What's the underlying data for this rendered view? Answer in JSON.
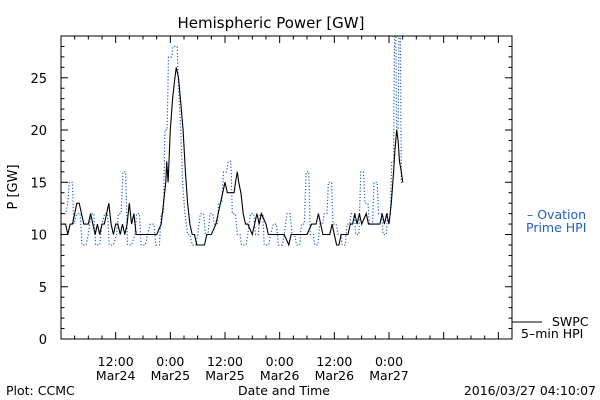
{
  "footer": {
    "left": "Plot: CCMC",
    "center": "Date and Time",
    "right": "2016/03/27 04:10:07"
  },
  "legend": {
    "ovation_line1": "– Ovation",
    "ovation_line2": "Prime HPI",
    "swpc_line1": "SWPC",
    "swpc_line2": "5–min HPI"
  },
  "colors": {
    "swpc": "#000000",
    "ovation": "#1f5fbf",
    "axis": "#000000",
    "background": "#ffffff"
  },
  "chart_data": {
    "type": "line",
    "title": "Hemispheric Power [GW]",
    "ylabel": "P [GW]",
    "xlabel": "Date and Time",
    "xlim_hours": [
      0,
      99
    ],
    "ylim": [
      0,
      29
    ],
    "yticks": [
      0,
      5,
      10,
      15,
      20,
      25
    ],
    "xticks": [
      {
        "t": 12,
        "line1": "12:00",
        "line2": "Mar24"
      },
      {
        "t": 24,
        "line1": "0:00",
        "line2": "Mar25"
      },
      {
        "t": 36,
        "line1": "12:00",
        "line2": "Mar25"
      },
      {
        "t": 48,
        "line1": "0:00",
        "line2": "Mar26"
      },
      {
        "t": 60,
        "line1": "12:00",
        "line2": "Mar26"
      },
      {
        "t": 72,
        "line1": "0:00",
        "line2": "Mar27"
      }
    ],
    "series": [
      {
        "name": "SWPC 5-min HPI",
        "style": "solid",
        "points": [
          [
            0,
            11
          ],
          [
            1,
            11
          ],
          [
            1.5,
            10
          ],
          [
            2,
            11
          ],
          [
            2.5,
            11
          ],
          [
            3,
            12
          ],
          [
            3.5,
            13
          ],
          [
            4,
            13
          ],
          [
            4.5,
            12
          ],
          [
            5,
            11
          ],
          [
            6,
            11
          ],
          [
            6.5,
            12
          ],
          [
            7,
            11
          ],
          [
            7.5,
            10
          ],
          [
            8,
            11
          ],
          [
            8.5,
            10
          ],
          [
            9,
            11
          ],
          [
            9.5,
            11
          ],
          [
            10,
            12
          ],
          [
            10.5,
            13
          ],
          [
            11,
            11
          ],
          [
            11.5,
            10
          ],
          [
            12,
            11
          ],
          [
            12.5,
            11
          ],
          [
            13,
            10
          ],
          [
            13.5,
            11
          ],
          [
            14,
            10
          ],
          [
            14.5,
            11
          ],
          [
            15,
            13
          ],
          [
            15.5,
            11
          ],
          [
            16,
            12
          ],
          [
            16.5,
            10
          ],
          [
            17,
            10
          ],
          [
            18,
            10
          ],
          [
            19,
            10
          ],
          [
            20,
            10
          ],
          [
            21,
            10
          ],
          [
            22,
            11
          ],
          [
            22.5,
            13
          ],
          [
            23,
            15
          ],
          [
            23.2,
            17
          ],
          [
            23.5,
            15
          ],
          [
            24,
            20
          ],
          [
            24.5,
            23
          ],
          [
            25,
            25
          ],
          [
            25.3,
            26
          ],
          [
            25.8,
            25
          ],
          [
            26.2,
            23
          ],
          [
            26.8,
            20
          ],
          [
            27.3,
            16
          ],
          [
            27.8,
            13
          ],
          [
            28.3,
            11
          ],
          [
            28.8,
            10
          ],
          [
            29.3,
            10
          ],
          [
            29.8,
            9
          ],
          [
            30.5,
            9
          ],
          [
            31.5,
            9
          ],
          [
            32,
            10
          ],
          [
            33,
            10
          ],
          [
            34,
            11
          ],
          [
            34.5,
            12
          ],
          [
            35,
            13
          ],
          [
            35.5,
            14
          ],
          [
            36,
            15
          ],
          [
            36.5,
            14
          ],
          [
            37.5,
            14
          ],
          [
            38,
            14
          ],
          [
            38.3,
            15
          ],
          [
            38.7,
            16
          ],
          [
            39,
            15
          ],
          [
            39.5,
            14
          ],
          [
            40,
            12
          ],
          [
            40.5,
            11
          ],
          [
            41,
            11
          ],
          [
            42,
            10
          ],
          [
            42.5,
            11
          ],
          [
            43,
            12
          ],
          [
            43.5,
            11
          ],
          [
            44,
            12
          ],
          [
            45,
            11
          ],
          [
            45.5,
            10
          ],
          [
            46,
            10
          ],
          [
            47,
            10
          ],
          [
            48,
            10
          ],
          [
            49,
            10
          ],
          [
            50,
            9
          ],
          [
            50.5,
            10
          ],
          [
            51,
            10
          ],
          [
            52,
            10
          ],
          [
            53,
            10
          ],
          [
            54,
            10
          ],
          [
            55,
            11
          ],
          [
            56,
            11
          ],
          [
            56.5,
            12
          ],
          [
            57,
            11
          ],
          [
            57.5,
            10
          ],
          [
            58,
            10
          ],
          [
            59,
            10
          ],
          [
            59.5,
            11
          ],
          [
            60,
            10
          ],
          [
            60.5,
            9
          ],
          [
            61,
            9
          ],
          [
            61.5,
            10
          ],
          [
            62,
            10
          ],
          [
            63,
            10
          ],
          [
            63.5,
            11
          ],
          [
            64,
            11
          ],
          [
            64.5,
            12
          ],
          [
            65,
            11
          ],
          [
            65.5,
            12
          ],
          [
            66,
            11
          ],
          [
            67,
            12
          ],
          [
            67.5,
            11
          ],
          [
            68,
            11
          ],
          [
            69,
            11
          ],
          [
            70,
            11
          ],
          [
            70.5,
            12
          ],
          [
            71,
            11
          ],
          [
            71.5,
            12
          ],
          [
            72,
            11
          ],
          [
            72.5,
            13
          ],
          [
            73,
            16
          ],
          [
            73.3,
            18
          ],
          [
            73.7,
            20
          ],
          [
            74,
            19
          ],
          [
            74.3,
            17
          ],
          [
            74.7,
            16
          ],
          [
            75,
            15
          ]
        ]
      },
      {
        "name": "Ovation Prime HPI",
        "style": "dotted",
        "points": [
          [
            0,
            12
          ],
          [
            1,
            12
          ],
          [
            1.5,
            13
          ],
          [
            1.8,
            15
          ],
          [
            2.5,
            15
          ],
          [
            2.8,
            11
          ],
          [
            3.5,
            12
          ],
          [
            4.2,
            12
          ],
          [
            4.6,
            9
          ],
          [
            5.5,
            9
          ],
          [
            6,
            10
          ],
          [
            6.6,
            12
          ],
          [
            7.2,
            12
          ],
          [
            7.6,
            9
          ],
          [
            8.5,
            9
          ],
          [
            9,
            11
          ],
          [
            9.6,
            12
          ],
          [
            10.2,
            12
          ],
          [
            10.6,
            9
          ],
          [
            11.5,
            9
          ],
          [
            12.2,
            10
          ],
          [
            12.6,
            12
          ],
          [
            13.2,
            12
          ],
          [
            13.6,
            16
          ],
          [
            14.2,
            16
          ],
          [
            14.6,
            9
          ],
          [
            15.5,
            9
          ],
          [
            16.2,
            10
          ],
          [
            16.6,
            12
          ],
          [
            17.2,
            12
          ],
          [
            17.6,
            9
          ],
          [
            18.5,
            9
          ],
          [
            19,
            10
          ],
          [
            19.6,
            11
          ],
          [
            20.4,
            11
          ],
          [
            20.8,
            9
          ],
          [
            21.6,
            9
          ],
          [
            22,
            12
          ],
          [
            22.5,
            12
          ],
          [
            22.8,
            20
          ],
          [
            23.3,
            20
          ],
          [
            23.6,
            27
          ],
          [
            24.3,
            27
          ],
          [
            24.6,
            28
          ],
          [
            25.5,
            28
          ],
          [
            25.8,
            24
          ],
          [
            26.3,
            20
          ],
          [
            26.7,
            15
          ],
          [
            27.2,
            12
          ],
          [
            27.8,
            10
          ],
          [
            28.3,
            10
          ],
          [
            28.8,
            9
          ],
          [
            29.6,
            9
          ],
          [
            30,
            10
          ],
          [
            30.6,
            12
          ],
          [
            31.3,
            12
          ],
          [
            31.7,
            10
          ],
          [
            32.3,
            10
          ],
          [
            32.7,
            12
          ],
          [
            33.3,
            12
          ],
          [
            33.7,
            11
          ],
          [
            34.3,
            11
          ],
          [
            34.6,
            13
          ],
          [
            35.3,
            13
          ],
          [
            35.7,
            16
          ],
          [
            36.3,
            16
          ],
          [
            36.7,
            17
          ],
          [
            37.3,
            17
          ],
          [
            37.6,
            12
          ],
          [
            38.3,
            12
          ],
          [
            38.7,
            10
          ],
          [
            39.3,
            10
          ],
          [
            39.6,
            9
          ],
          [
            40.6,
            9
          ],
          [
            41,
            10
          ],
          [
            41.6,
            12
          ],
          [
            42.3,
            12
          ],
          [
            42.7,
            10
          ],
          [
            43.3,
            10
          ],
          [
            43.7,
            12
          ],
          [
            44.3,
            12
          ],
          [
            44.6,
            9
          ],
          [
            45.6,
            9
          ],
          [
            46,
            10
          ],
          [
            46.6,
            11
          ],
          [
            47.3,
            11
          ],
          [
            47.7,
            9
          ],
          [
            48.6,
            9
          ],
          [
            49,
            10
          ],
          [
            49.6,
            12
          ],
          [
            50.3,
            12
          ],
          [
            50.7,
            10
          ],
          [
            51.3,
            10
          ],
          [
            51.7,
            9
          ],
          [
            52.4,
            9
          ],
          [
            52.8,
            11
          ],
          [
            53.4,
            11
          ],
          [
            53.8,
            16
          ],
          [
            54.4,
            16
          ],
          [
            54.7,
            10
          ],
          [
            55.4,
            10
          ],
          [
            55.7,
            9
          ],
          [
            56.4,
            9
          ],
          [
            56.8,
            11
          ],
          [
            57.4,
            11
          ],
          [
            57.8,
            12
          ],
          [
            58.4,
            12
          ],
          [
            58.7,
            15
          ],
          [
            59.4,
            15
          ],
          [
            59.7,
            11
          ],
          [
            60.4,
            11
          ],
          [
            60.8,
            10
          ],
          [
            61.4,
            10
          ],
          [
            61.7,
            9
          ],
          [
            62.4,
            9
          ],
          [
            62.8,
            11
          ],
          [
            63.4,
            11
          ],
          [
            63.7,
            12
          ],
          [
            64.4,
            12
          ],
          [
            64.7,
            10
          ],
          [
            65.4,
            10
          ],
          [
            65.8,
            16
          ],
          [
            66.4,
            16
          ],
          [
            66.7,
            13
          ],
          [
            67.4,
            13
          ],
          [
            67.7,
            11
          ],
          [
            68.4,
            11
          ],
          [
            68.7,
            15
          ],
          [
            69.4,
            15
          ],
          [
            69.7,
            12
          ],
          [
            70.4,
            12
          ],
          [
            70.7,
            10
          ],
          [
            71.4,
            10
          ],
          [
            71.7,
            12
          ],
          [
            72.3,
            12
          ],
          [
            72.6,
            17
          ],
          [
            73,
            17
          ],
          [
            73.2,
            29
          ],
          [
            73.5,
            29
          ],
          [
            73.7,
            20
          ],
          [
            74,
            20
          ],
          [
            74.2,
            29
          ],
          [
            74.5,
            29
          ],
          [
            74.7,
            15
          ],
          [
            75,
            15
          ]
        ]
      }
    ]
  }
}
